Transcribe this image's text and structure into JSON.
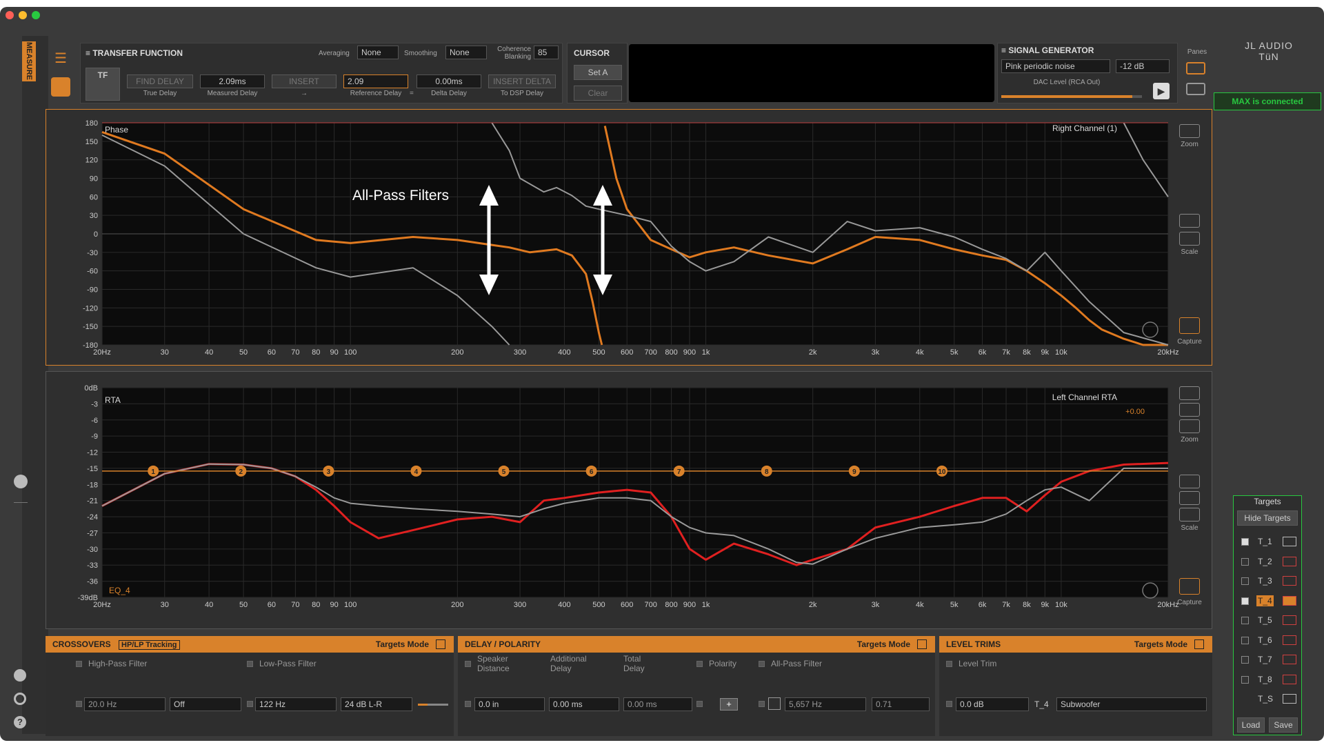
{
  "app": {
    "title": "JL AUDIO TüN",
    "brand_color": "#d9822b",
    "status": "MAX is connected",
    "sidebar_tab": "MEASURE"
  },
  "tf": {
    "title": "TRANSFER FUNCTION",
    "averaging_label": "Averaging",
    "averaging_value": "None",
    "smoothing_label": "Smoothing",
    "smoothing_value": "None",
    "coherence_label_1": "Coherence",
    "coherence_label_2": "Blanking",
    "coherence_value": "85",
    "tf_button": "TF",
    "find_delay": "FIND DELAY",
    "true_delay": "True Delay",
    "measured_delay_value": "2.09ms",
    "measured_delay": "Measured Delay",
    "insert": "INSERT",
    "insert_sub": "→",
    "reference_delay_value": "2.09",
    "reference_delay": "Reference Delay",
    "eq": "=",
    "delta_delay_value": "0.00ms",
    "delta_delay": "Delta Delay",
    "insert_delta": "INSERT DELTA",
    "to_dsp": "To DSP Delay"
  },
  "cursor": {
    "title": "CURSOR",
    "set_a": "Set A",
    "clear": "Clear"
  },
  "siggen": {
    "title": "SIGNAL GENERATOR",
    "type": "Pink periodic noise",
    "level": "-12 dB",
    "dac_label": "DAC Level (RCA Out)",
    "level_fraction": 0.93
  },
  "panes": {
    "title": "Panes"
  },
  "phase_plot": {
    "name": "Phase",
    "channel": "Right Channel (1)",
    "annotation": "All-Pass Filters",
    "y_ticks": [
      "180",
      "150",
      "120",
      "90",
      "60",
      "30",
      "0",
      "-30",
      "-60",
      "-90",
      "-120",
      "-150",
      "-180"
    ],
    "x_ticks": [
      "20Hz",
      "30",
      "40",
      "50",
      "60",
      "70",
      "80",
      "90",
      "100",
      "200",
      "300",
      "400",
      "500",
      "600",
      "700",
      "800",
      "900",
      "1k",
      "2k",
      "3k",
      "4k",
      "5k",
      "6k",
      "7k",
      "8k",
      "9k",
      "10k",
      "20kHz"
    ],
    "zoom": "Zoom",
    "scale": "Scale",
    "capture": "Capture"
  },
  "rta_plot": {
    "name": "RTA",
    "channel": "Left Channel RTA",
    "offset": "+0.00",
    "eq_label": "EQ_4",
    "y_ticks": [
      "0dB",
      "-3",
      "-6",
      "-9",
      "-12",
      "-15",
      "-18",
      "-21",
      "-24",
      "-27",
      "-30",
      "-33",
      "-36",
      "-39dB"
    ],
    "x_ticks": [
      "20Hz",
      "30",
      "40",
      "50",
      "60",
      "70",
      "80",
      "90",
      "100",
      "200",
      "300",
      "400",
      "500",
      "600",
      "700",
      "800",
      "900",
      "1k",
      "2k",
      "3k",
      "4k",
      "5k",
      "6k",
      "7k",
      "8k",
      "9k",
      "10k",
      "20kHz"
    ],
    "markers": [
      "1",
      "2",
      "3",
      "4",
      "5",
      "6",
      "7",
      "8",
      "9",
      "10"
    ],
    "zoom": "Zoom",
    "scale": "Scale",
    "capture": "Capture"
  },
  "chart_data": [
    {
      "type": "line",
      "name": "Phase",
      "x_scale": "log",
      "xlim": [
        20,
        20000
      ],
      "ylim": [
        -180,
        180
      ],
      "series": [
        {
          "color": "#e07a20",
          "x": [
            20,
            30,
            50,
            80,
            100,
            150,
            200,
            250,
            280,
            320,
            380,
            420,
            460,
            480,
            500,
            510
          ],
          "y": [
            165,
            130,
            40,
            -10,
            -15,
            -5,
            -10,
            -18,
            -22,
            -30,
            -25,
            -35,
            -65,
            -110,
            -160,
            -180
          ]
        },
        {
          "color": "#e07a20",
          "x": [
            520,
            560,
            600,
            700,
            800,
            900,
            1000,
            1200,
            1500,
            2000,
            2500,
            3000,
            4000,
            5000,
            6000,
            7000,
            8000,
            9000,
            10000,
            11000,
            12000,
            13000,
            15000,
            17000,
            20000
          ],
          "y": [
            175,
            90,
            40,
            -10,
            -25,
            -38,
            -30,
            -22,
            -35,
            -48,
            -25,
            -5,
            -10,
            -25,
            -35,
            -42,
            -60,
            -80,
            -100,
            -120,
            -140,
            -155,
            -170,
            -180,
            -180
          ]
        },
        {
          "color": "#999999",
          "x": [
            20,
            30,
            50,
            80,
            100,
            150,
            200,
            250,
            280
          ],
          "y": [
            160,
            110,
            0,
            -55,
            -70,
            -55,
            -100,
            -150,
            -180
          ]
        },
        {
          "color": "#999999",
          "x": [
            250,
            280,
            300,
            350,
            380,
            420,
            460,
            500,
            600,
            700,
            800,
            900,
            1000,
            1200,
            1500,
            2000,
            2500,
            3000,
            4000,
            5000,
            6000,
            7000,
            8000,
            9000,
            10000,
            12000,
            15000,
            20000
          ],
          "y": [
            180,
            135,
            90,
            68,
            75,
            62,
            45,
            40,
            30,
            20,
            -20,
            -45,
            -60,
            -45,
            -5,
            -30,
            20,
            5,
            10,
            -5,
            -25,
            -40,
            -60,
            -30,
            -60,
            -110,
            -160,
            -180
          ]
        },
        {
          "color": "#999999",
          "x": [
            15000,
            17000,
            20000
          ],
          "y": [
            180,
            120,
            60
          ]
        }
      ]
    },
    {
      "type": "line",
      "name": "RTA",
      "x_scale": "log",
      "xlim": [
        20,
        20000
      ],
      "ylim": [
        -39,
        0
      ],
      "series": [
        {
          "color": "#e02020",
          "x": [
            20,
            30,
            40,
            50,
            60,
            70,
            80,
            90,
            100,
            120,
            150,
            200,
            250,
            300,
            350,
            400,
            500,
            600,
            700,
            800,
            900,
            1000,
            1200,
            1500,
            1800,
            2000,
            2500,
            3000,
            4000,
            5000,
            6000,
            7000,
            8000,
            9000,
            10000,
            12000,
            15000,
            20000
          ],
          "y": [
            -22,
            -16,
            -14.2,
            -14.3,
            -15,
            -16.5,
            -19,
            -22,
            -25,
            -28,
            -26.5,
            -24.5,
            -24,
            -25,
            -21,
            -20.5,
            -19.5,
            -19,
            -19.5,
            -24,
            -30,
            -32,
            -29,
            -31,
            -33,
            -32,
            -30,
            -26,
            -24,
            -22,
            -20.5,
            -20.5,
            -23,
            -20,
            -17.5,
            -15.5,
            -14.3,
            -14
          ]
        },
        {
          "color": "#9a9a9a",
          "x": [
            20,
            30,
            40,
            50,
            60,
            70,
            80,
            90,
            100,
            120,
            150,
            200,
            250,
            300,
            350,
            400,
            500,
            600,
            700,
            800,
            900,
            1000,
            1200,
            1500,
            1800,
            2000,
            2500,
            3000,
            4000,
            5000,
            6000,
            7000,
            8000,
            9000,
            10000,
            12000,
            15000,
            20000
          ],
          "y": [
            -22,
            -16,
            -14.2,
            -14.3,
            -15,
            -16.5,
            -18.5,
            -20.5,
            -21.5,
            -22,
            -22.5,
            -23,
            -23.5,
            -24,
            -22.5,
            -21.5,
            -20.5,
            -20.5,
            -21,
            -24,
            -26,
            -27,
            -27.5,
            -30,
            -32.5,
            -32.8,
            -30,
            -28,
            -26,
            -25.5,
            -25,
            -23.5,
            -21,
            -19,
            -18.5,
            -21,
            -15,
            -15
          ]
        }
      ]
    }
  ],
  "crossovers": {
    "title": "CROSSOVERS",
    "tracking": "HP/LP Tracking",
    "mode": "Targets Mode",
    "hpf_label": "High-Pass Filter",
    "lpf_label": "Low-Pass Filter",
    "hpf_freq": "20.0 Hz",
    "hpf_slope": "Off",
    "lpf_freq": "122 Hz",
    "lpf_slope": "24 dB L-R"
  },
  "delay": {
    "title": "DELAY / POLARITY",
    "mode": "Targets Mode",
    "speaker_distance_1": "Speaker",
    "speaker_distance_2": "Distance",
    "additional_delay_1": "Additional",
    "additional_delay_2": "Delay",
    "total_delay_1": "Total",
    "total_delay_2": "Delay",
    "polarity": "Polarity",
    "apf": "All-Pass Filter",
    "distance": "0.0 in",
    "additional": "0.00 ms",
    "total": "0.00 ms",
    "apf_freq": "5,657 Hz",
    "apf_q": "0.71"
  },
  "levels": {
    "title": "LEVEL TRIMS",
    "mode": "Targets Mode",
    "trim_label": "Level Trim",
    "trim": "0.0 dB",
    "target": "T_4",
    "name": "Subwoofer"
  },
  "targets": {
    "title": "Targets",
    "hide": "Hide Targets",
    "items": [
      "T_1",
      "T_2",
      "T_3",
      "T_4",
      "T_5",
      "T_6",
      "T_7",
      "T_8",
      "T_S"
    ],
    "load": "Load",
    "save": "Save"
  }
}
